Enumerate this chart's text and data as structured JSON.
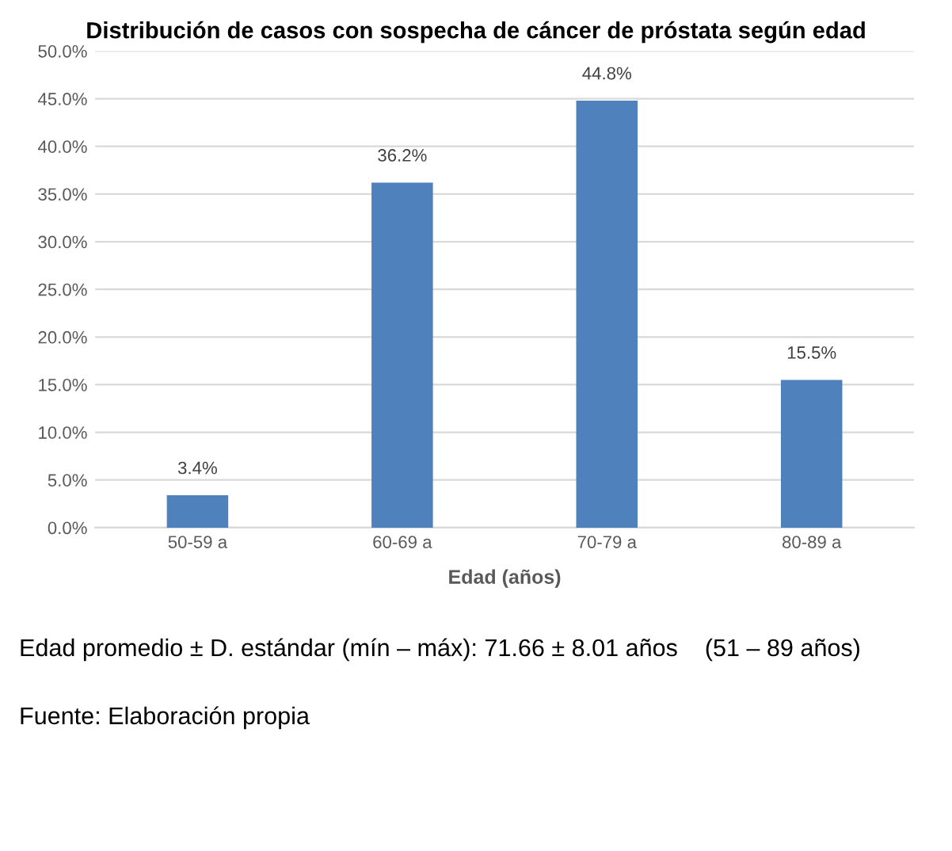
{
  "chart_data": {
    "type": "bar",
    "title": "Distribución de casos con sospecha de cáncer de próstata según edad",
    "xlabel": "Edad (años)",
    "categories": [
      "50-59 a",
      "60-69 a",
      "70-79 a",
      "80-89 a"
    ],
    "values": [
      3.4,
      36.2,
      44.8,
      15.5
    ],
    "value_labels": [
      "3.4%",
      "36.2%",
      "44.8%",
      "15.5%"
    ],
    "color": "#4f81bd",
    "ylim": [
      0,
      50
    ],
    "yticks": [
      {
        "value": 0,
        "label": "0.0%"
      },
      {
        "value": 5,
        "label": "5.0%"
      },
      {
        "value": 10,
        "label": "10.0%"
      },
      {
        "value": 15,
        "label": "15.0%"
      },
      {
        "value": 20,
        "label": "20.0%"
      },
      {
        "value": 25,
        "label": "25.0%"
      },
      {
        "value": 30,
        "label": "30.0%"
      },
      {
        "value": 35,
        "label": "35.0%"
      },
      {
        "value": 40,
        "label": "40.0%"
      },
      {
        "value": 45,
        "label": "45.0%"
      },
      {
        "value": 50,
        "label": "50.0%"
      }
    ],
    "grid": "y",
    "annotations": [
      "Edad promedio ± D. estándar (mín – máx): 71.66 ± 8.01 años    (51 – 89 años)",
      "Fuente: Elaboración propia"
    ]
  }
}
